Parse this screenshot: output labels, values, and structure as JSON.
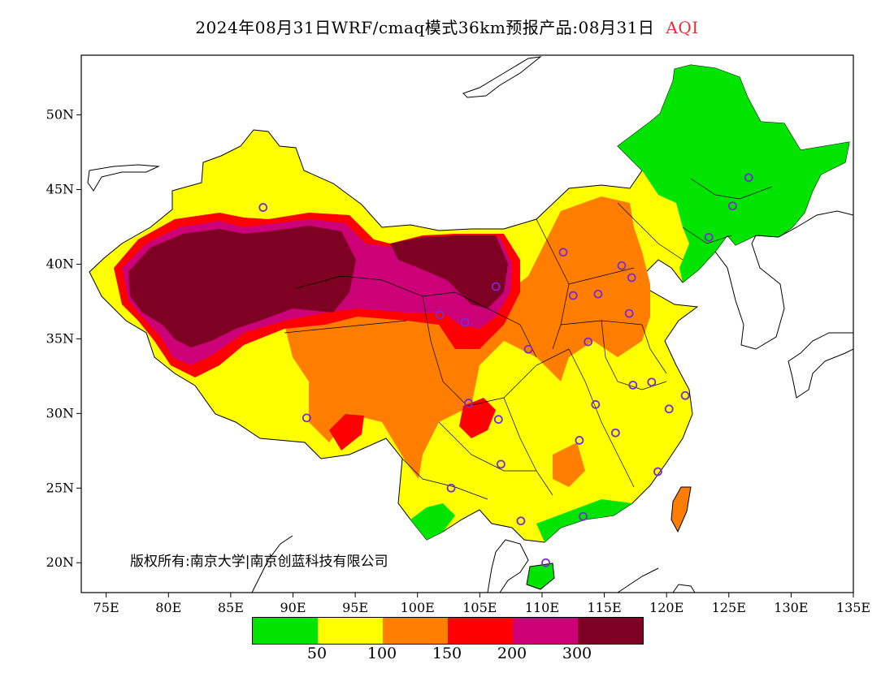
{
  "title": {
    "main": "2024年08月31日WRF/cmaq模式36km预报产品:08月31日",
    "variable": "AQI"
  },
  "axes": {
    "lat_labels": [
      "50N",
      "45N",
      "40N",
      "35N",
      "30N",
      "25N",
      "20N"
    ],
    "lat_values": [
      50,
      45,
      40,
      35,
      30,
      25,
      20
    ],
    "lon_labels": [
      "75E",
      "80E",
      "85E",
      "90E",
      "95E",
      "100E",
      "105E",
      "110E",
      "115E",
      "120E",
      "125E",
      "130E",
      "135E"
    ],
    "lon_values": [
      75,
      80,
      85,
      90,
      95,
      100,
      105,
      110,
      115,
      120,
      125,
      130,
      135
    ],
    "lon_range": [
      73,
      135
    ],
    "lat_range": [
      18,
      54
    ]
  },
  "copyright": "版权所有:南京大学|南京创蓝科技有限公司",
  "legend": {
    "colors": [
      "#00e400",
      "#ffff00",
      "#ff7e00",
      "#ff0000",
      "#cc0077",
      "#7e0023"
    ],
    "labels": [
      "50",
      "100",
      "150",
      "200",
      "300"
    ],
    "categories": [
      "0-50",
      "50-100",
      "100-150",
      "150-200",
      "200-300",
      ">300"
    ]
  },
  "stations": [
    {
      "lon": 87.6,
      "lat": 43.8
    },
    {
      "lon": 91.1,
      "lat": 29.7
    },
    {
      "lon": 101.8,
      "lat": 36.6
    },
    {
      "lon": 103.8,
      "lat": 36.1
    },
    {
      "lon": 106.3,
      "lat": 38.5
    },
    {
      "lon": 111.7,
      "lat": 40.8
    },
    {
      "lon": 112.5,
      "lat": 37.9
    },
    {
      "lon": 114.5,
      "lat": 38.0
    },
    {
      "lon": 116.4,
      "lat": 39.9
    },
    {
      "lon": 117.2,
      "lat": 39.1
    },
    {
      "lon": 117.0,
      "lat": 36.7
    },
    {
      "lon": 113.7,
      "lat": 34.8
    },
    {
      "lon": 108.9,
      "lat": 34.3
    },
    {
      "lon": 104.1,
      "lat": 30.7
    },
    {
      "lon": 106.5,
      "lat": 29.6
    },
    {
      "lon": 114.3,
      "lat": 30.6
    },
    {
      "lon": 117.3,
      "lat": 31.9
    },
    {
      "lon": 118.8,
      "lat": 32.1
    },
    {
      "lon": 121.5,
      "lat": 31.2
    },
    {
      "lon": 120.2,
      "lat": 30.3
    },
    {
      "lon": 115.9,
      "lat": 28.7
    },
    {
      "lon": 113.0,
      "lat": 28.2
    },
    {
      "lon": 119.3,
      "lat": 26.1
    },
    {
      "lon": 106.7,
      "lat": 26.6
    },
    {
      "lon": 102.7,
      "lat": 25.0
    },
    {
      "lon": 108.3,
      "lat": 22.8
    },
    {
      "lon": 113.3,
      "lat": 23.1
    },
    {
      "lon": 110.3,
      "lat": 20.0
    },
    {
      "lon": 123.4,
      "lat": 41.8
    },
    {
      "lon": 125.3,
      "lat": 43.9
    },
    {
      "lon": 126.6,
      "lat": 45.8
    }
  ]
}
